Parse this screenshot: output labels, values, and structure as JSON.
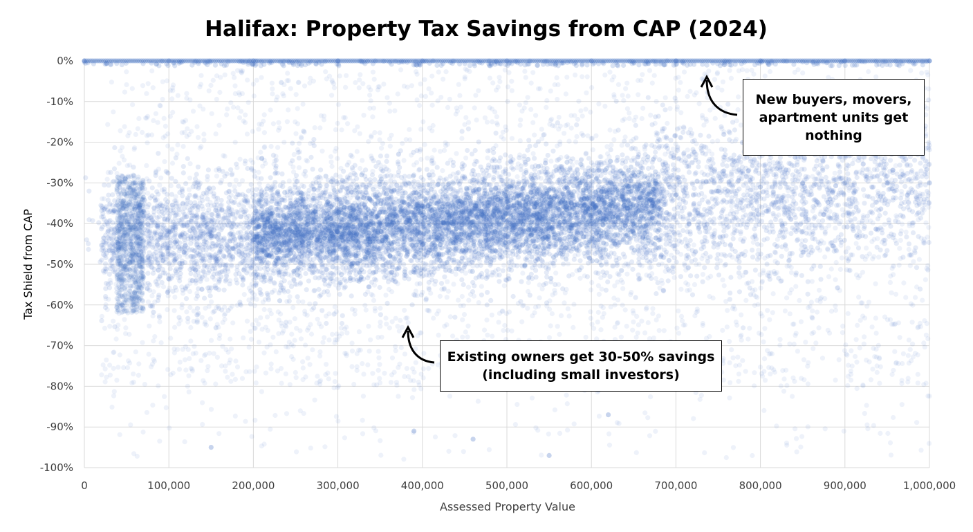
{
  "chart_data": {
    "type": "scatter",
    "title": "Halifax: Property Tax Savings from CAP (2024)",
    "xlabel": "Assessed Property Value",
    "ylabel": "Tax Shield from CAP",
    "xlim": [
      0,
      1000000
    ],
    "ylim": [
      -100,
      0
    ],
    "x_ticks": [
      "0",
      "100,000",
      "200,000",
      "300,000",
      "400,000",
      "500,000",
      "600,000",
      "700,000",
      "800,000",
      "900,000",
      "1,000,000"
    ],
    "x_tick_values": [
      0,
      100000,
      200000,
      300000,
      400000,
      500000,
      600000,
      700000,
      800000,
      900000,
      1000000
    ],
    "y_ticks": [
      "0%",
      "-10%",
      "-20%",
      "-30%",
      "-40%",
      "-50%",
      "-60%",
      "-70%",
      "-80%",
      "-90%",
      "-100%"
    ],
    "y_tick_values": [
      0,
      -10,
      -20,
      -30,
      -40,
      -50,
      -60,
      -70,
      -80,
      -90,
      -100
    ],
    "grid": true,
    "legend": "none",
    "point_color": "#4472C4",
    "series": [
      {
        "description_points": [
          [
            0,
            0
          ],
          [
            100000,
            0
          ],
          [
            200000,
            0
          ],
          [
            300000,
            0
          ],
          [
            400000,
            0
          ],
          [
            500000,
            0
          ],
          [
            600000,
            0
          ],
          [
            700000,
            0
          ],
          [
            800000,
            0
          ],
          [
            900000,
            0
          ],
          [
            1000000,
            0
          ],
          [
            40000,
            -45
          ],
          [
            45000,
            -60
          ],
          [
            65000,
            -36
          ],
          [
            60000,
            -30
          ],
          [
            210000,
            -24
          ],
          [
            100000,
            -42
          ],
          [
            150000,
            -43
          ],
          [
            200000,
            -44
          ],
          [
            250000,
            -43
          ],
          [
            300000,
            -42
          ],
          [
            350000,
            -40
          ],
          [
            400000,
            -38
          ],
          [
            450000,
            -37
          ],
          [
            500000,
            -36
          ],
          [
            550000,
            -35
          ],
          [
            600000,
            -35
          ],
          [
            650000,
            -34
          ],
          [
            700000,
            -33
          ],
          [
            750000,
            -32
          ],
          [
            800000,
            -31
          ],
          [
            850000,
            -30
          ],
          [
            900000,
            -30
          ],
          [
            950000,
            -30
          ],
          [
            1000000,
            -30
          ],
          [
            150000,
            -95
          ],
          [
            460000,
            -93
          ],
          [
            550000,
            -97
          ],
          [
            620000,
            -87
          ],
          [
            390000,
            -91
          ]
        ]
      }
    ],
    "annotations": [
      {
        "text_lines": [
          "New buyers, movers,",
          "apartment units get",
          "nothing"
        ]
      },
      {
        "text_lines": [
          "Existing owners get 30-50% savings",
          "(including small investors)"
        ]
      }
    ]
  }
}
